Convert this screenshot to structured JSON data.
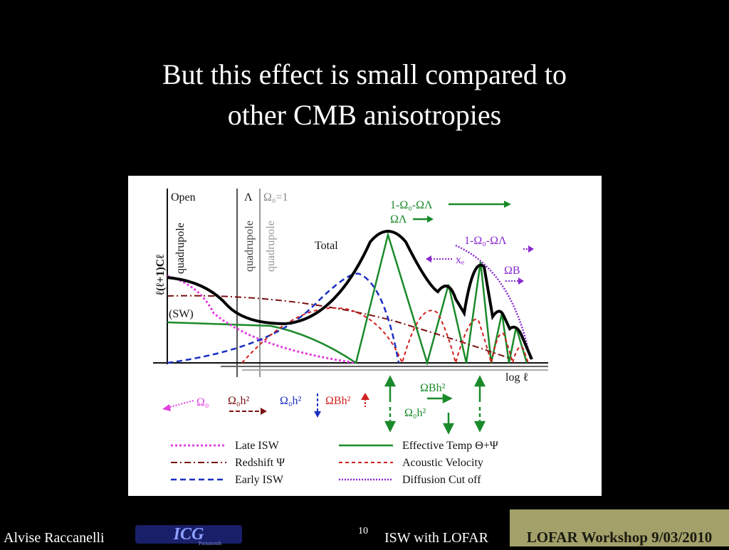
{
  "title": {
    "lines": [
      "But this effect is small compared to",
      "other CMB anisotropies"
    ]
  },
  "figure": {
    "labels": {
      "open": "Open",
      "lambda": "Λ",
      "flat": "Ω₀=1",
      "quadrupole": [
        "quadrupole",
        "quadrupole",
        "quadrupole"
      ],
      "y_axis": "ℓ(ℓ+1)Cℓ",
      "sw": "(SW)",
      "total": "Total",
      "curvature_top": "1-Ω₀-ΩΛ",
      "omega_lambda": "ΩΛ",
      "curvature_right": "1-Ω₀-ΩΛ",
      "xe": "xₑ",
      "omega_b": "ΩB",
      "x_axis": "log ℓ"
    },
    "params": [
      "Ω₀",
      "Ω₀h²",
      "Ω₀h²",
      "ΩBh²",
      "ΩBh²",
      "Ω₀h²"
    ],
    "legend": [
      "Late ISW",
      "Redshift Ψ",
      "Early ISW",
      "Effective Temp Θ+Ψ",
      "Acoustic Velocity",
      "Diffusion Cut off"
    ]
  },
  "footer": {
    "author": "Alvise Raccanelli",
    "logo": "ICG",
    "logo_sub": "Portsmouth",
    "page": "10",
    "talk": "ISW with LOFAR",
    "event": "LOFAR Workshop 9/03/2010"
  }
}
